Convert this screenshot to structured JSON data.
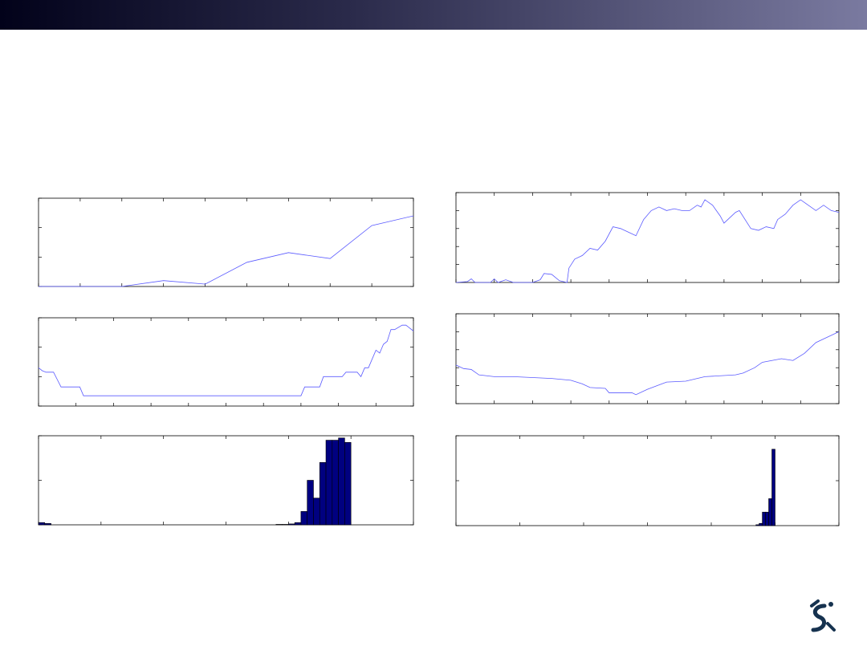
{
  "chart_data": [
    {
      "type": "line",
      "color": "#5a5aff",
      "xlim": [
        0,
        9
      ],
      "xticks": [
        0,
        1,
        2,
        3,
        4,
        5,
        6,
        7,
        8,
        9
      ],
      "ylim": [
        0,
        3
      ],
      "yticks": [
        0,
        1,
        2,
        3
      ],
      "series": [
        {
          "x": [
            0,
            1,
            2,
            3,
            4,
            5,
            6,
            7,
            8,
            9
          ],
          "values": [
            0,
            0,
            0,
            0.2,
            0.08,
            0.82,
            1.15,
            0.95,
            2.07,
            2.4
          ]
        }
      ]
    },
    {
      "type": "line",
      "color": "#5a5aff",
      "xlim": [
        0,
        100
      ],
      "xticks": [
        0,
        10,
        20,
        30,
        40,
        50,
        60,
        70,
        80,
        90,
        100
      ],
      "ylim": [
        0,
        3
      ],
      "yticks": [
        0,
        1,
        2,
        3
      ],
      "series": [
        {
          "x": [
            0,
            1,
            2,
            4,
            5,
            6,
            11,
            12,
            70,
            71,
            75,
            76,
            81,
            82,
            85,
            86,
            87,
            88,
            89,
            90,
            91,
            92,
            93,
            94,
            95,
            97,
            98,
            100
          ],
          "values": [
            1.3,
            1.2,
            1.15,
            1.15,
            0.9,
            0.65,
            0.65,
            0.35,
            0.35,
            0.65,
            0.65,
            1.0,
            1.0,
            1.15,
            1.15,
            1.0,
            1.3,
            1.3,
            1.6,
            1.9,
            1.8,
            2.1,
            2.2,
            2.6,
            2.6,
            2.75,
            2.75,
            2.55
          ]
        }
      ]
    },
    {
      "type": "histogram",
      "color": "#000080",
      "xlim": [
        0,
        6
      ],
      "xticks": [
        0,
        1,
        2,
        3,
        4,
        5,
        6
      ],
      "ylim": [
        0,
        2
      ],
      "yticks": [
        0,
        1,
        2
      ],
      "bins": [
        0,
        0.1,
        0.2,
        3.8,
        3.9,
        4.0,
        4.1,
        4.2,
        4.3,
        4.4,
        4.5,
        4.6,
        4.7,
        4.8,
        4.9,
        5.0
      ],
      "values": [
        0.05,
        0.03,
        0,
        0.01,
        0.01,
        0.02,
        0.05,
        0.3,
        1.0,
        0.6,
        1.4,
        1.9,
        1.9,
        1.95,
        1.85
      ]
    },
    {
      "type": "line",
      "color": "#5a5aff",
      "xlim": [
        0,
        10
      ],
      "xticks": [
        0,
        1,
        2,
        3,
        4,
        5,
        6,
        7,
        8,
        9,
        10
      ],
      "ylim": [
        0,
        5
      ],
      "yticks": [
        0,
        1,
        2,
        3,
        4,
        5
      ],
      "series": [
        {
          "x": [
            0,
            0.3,
            0.4,
            0.5,
            0.9,
            1.0,
            1.1,
            1.3,
            1.5,
            2.0,
            2.2,
            2.3,
            2.5,
            2.7,
            2.9,
            2.95,
            3.1,
            3.3,
            3.5,
            3.7,
            3.9,
            4.1,
            4.3,
            4.5,
            4.7,
            4.9,
            5.1,
            5.3,
            5.5,
            5.7,
            5.9,
            6.1,
            6.3,
            6.4,
            6.5,
            6.7,
            6.9,
            7.0,
            7.1,
            7.3,
            7.4,
            7.7,
            7.9,
            8.1,
            8.3,
            8.4,
            8.6,
            8.8,
            9.0,
            9.2,
            9.4,
            9.6,
            9.8,
            10
          ],
          "values": [
            0,
            0.05,
            0.2,
            0,
            0,
            0.2,
            0,
            0.15,
            0,
            0,
            0.15,
            0.5,
            0.45,
            0.1,
            0,
            0.8,
            1.3,
            1.5,
            1.9,
            1.8,
            2.3,
            3.1,
            3.0,
            2.8,
            2.6,
            3.5,
            4.0,
            4.2,
            4.0,
            4.1,
            4.0,
            4.0,
            4.3,
            4.2,
            4.6,
            4.3,
            3.7,
            3.3,
            3.5,
            3.9,
            4.0,
            3.0,
            2.9,
            3.1,
            3.0,
            3.5,
            3.8,
            4.3,
            4.6,
            4.3,
            4.0,
            4.3,
            4.0,
            3.9
          ]
        }
      ]
    },
    {
      "type": "line",
      "color": "#5a5aff",
      "xlim": [
        0,
        10
      ],
      "xticks": [
        0,
        1,
        2,
        3,
        4,
        5,
        6,
        7,
        8,
        9,
        10
      ],
      "ylim": [
        0,
        5
      ],
      "yticks": [
        0,
        1,
        2,
        3,
        4,
        5
      ],
      "series": [
        {
          "x": [
            0,
            0.2,
            0.4,
            0.6,
            1.0,
            1.5,
            2.0,
            2.5,
            3.0,
            3.3,
            3.5,
            3.9,
            4.0,
            4.6,
            4.7,
            5.0,
            5.5,
            6.0,
            6.5,
            7.3,
            7.5,
            7.8,
            8.0,
            8.5,
            8.8,
            9.1,
            9.4,
            9.7,
            10
          ],
          "values": [
            2.15,
            1.95,
            1.9,
            1.6,
            1.5,
            1.5,
            1.45,
            1.4,
            1.3,
            1.1,
            0.9,
            0.85,
            0.6,
            0.6,
            0.5,
            0.8,
            1.2,
            1.25,
            1.5,
            1.6,
            1.7,
            2.0,
            2.3,
            2.5,
            2.4,
            2.8,
            3.4,
            3.7,
            4.0
          ]
        }
      ]
    },
    {
      "type": "histogram",
      "color": "#000080",
      "xlim": [
        0,
        6
      ],
      "xticks": [
        0,
        1,
        2,
        3,
        4,
        5,
        6
      ],
      "ylim": [
        0,
        2
      ],
      "yticks": [
        0,
        1,
        2
      ],
      "bins": [
        4.7,
        4.75,
        4.8,
        4.85,
        4.9,
        4.95,
        5.0
      ],
      "values": [
        0.02,
        0.05,
        0.3,
        0.3,
        0.6,
        1.7
      ]
    }
  ]
}
